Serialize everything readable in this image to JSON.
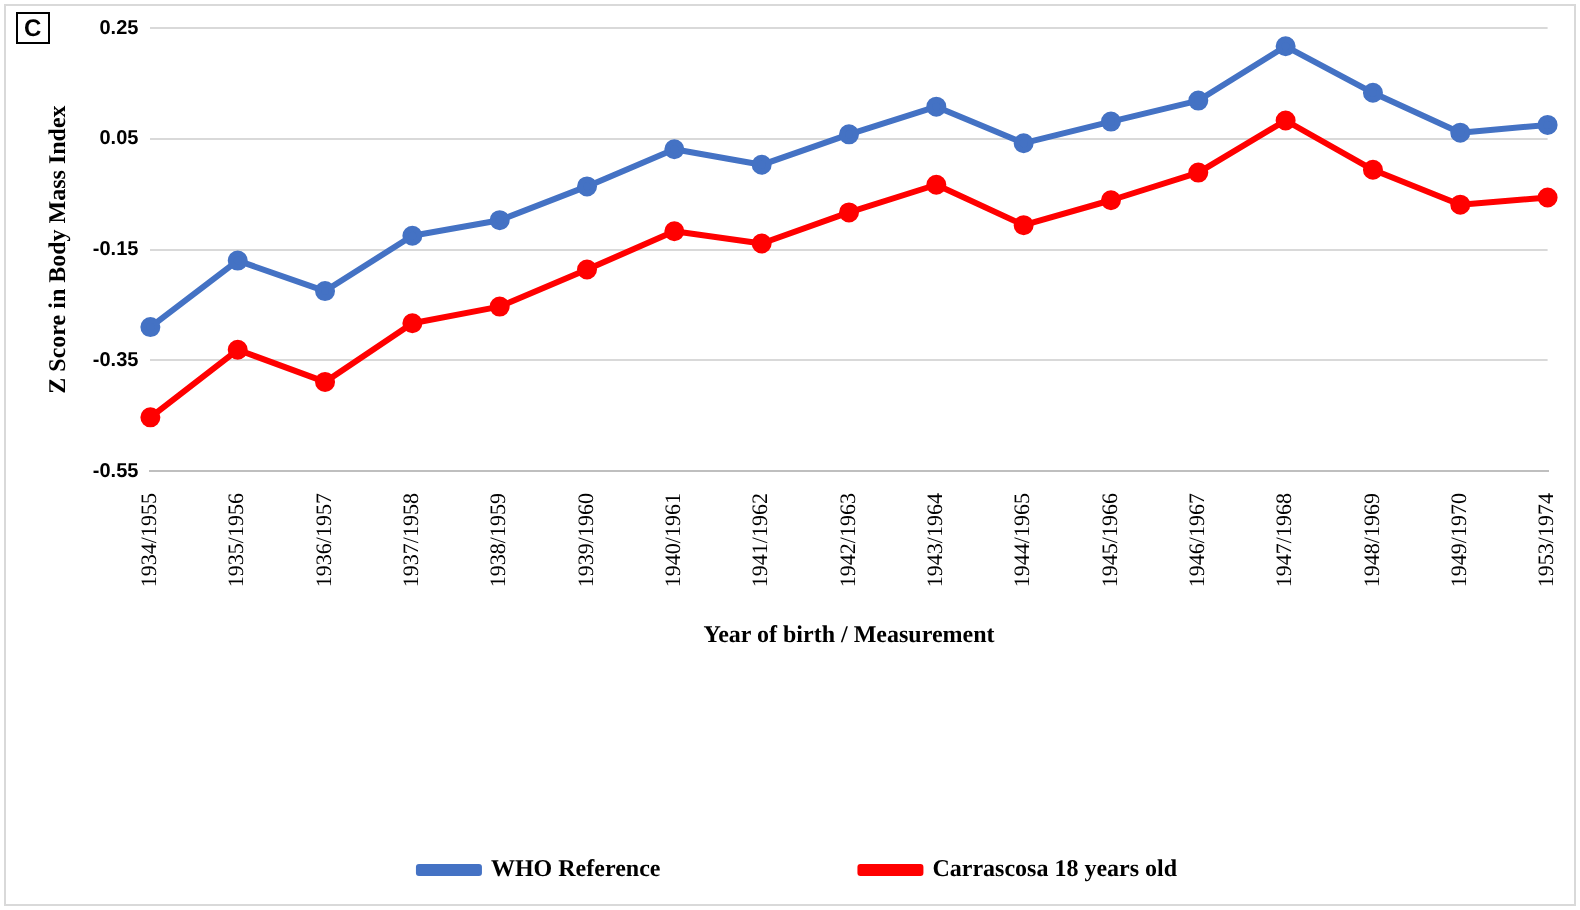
{
  "chart_data": {
    "type": "line",
    "xlabel": "Year of birth / Measurement",
    "ylabel": "Z Score in Body Mass Index",
    "annotations": [
      "C"
    ],
    "categories": [
      "1934/1955",
      "1935/1956",
      "1936/1957",
      "1937/1958",
      "1938/1959",
      "1939/1960",
      "1940/1961",
      "1941/1962",
      "1942/1963",
      "1943/1964",
      "1944/1965",
      "1945/1966",
      "1946/1967",
      "1947/1968",
      "1948/1969",
      "1949/1970",
      "1953/1974"
    ],
    "series": [
      {
        "name": "WHO Reference",
        "color": "#4472c4",
        "values": [
          -0.29,
          -0.17,
          -0.225,
          -0.125,
          -0.097,
          -0.036,
          0.031,
          0.003,
          0.058,
          0.108,
          0.042,
          0.081,
          0.119,
          0.217,
          0.133,
          0.061,
          0.075
        ]
      },
      {
        "name": "Carrascosa 18 years old",
        "color": "#ff0000",
        "values": [
          -0.453,
          -0.331,
          -0.389,
          -0.283,
          -0.253,
          -0.186,
          -0.117,
          -0.139,
          -0.083,
          -0.033,
          -0.106,
          -0.061,
          -0.011,
          0.083,
          -0.006,
          -0.069,
          -0.056
        ]
      }
    ],
    "ylim": [
      -0.55,
      0.25
    ],
    "yticks": [
      {
        "value": -0.55,
        "label": "-0.55"
      },
      {
        "value": -0.35,
        "label": "-0.35"
      },
      {
        "value": -0.15,
        "label": "-0.15"
      },
      {
        "value": 0.05,
        "label": "0.05"
      },
      {
        "value": 0.25,
        "label": "0.25"
      }
    ],
    "grid": "y",
    "legend": "bottom",
    "marker": "circle",
    "line_style": "solid"
  }
}
